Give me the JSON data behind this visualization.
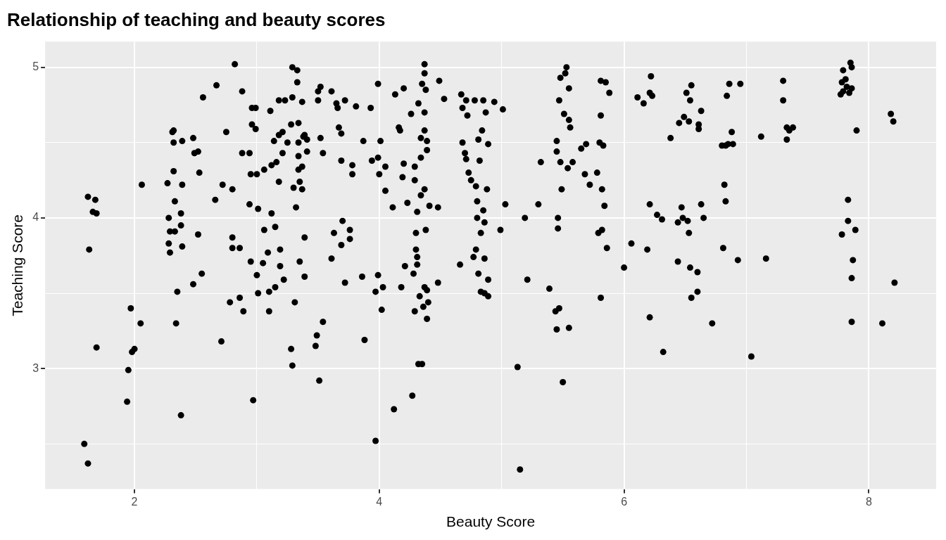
{
  "chart_data": {
    "type": "scatter",
    "title": "Relationship of teaching and beauty scores",
    "xlabel": "Beauty Score",
    "ylabel": "Teaching Score",
    "marker": "circle",
    "grid": true,
    "legend": false,
    "xlim": [
      1.27,
      8.55
    ],
    "ylim": [
      2.2,
      5.17
    ],
    "xticks": [
      2,
      {
        "value": 3,
        "label": null
      },
      4,
      {
        "value": 5,
        "label": null
      },
      6,
      {
        "value": 7,
        "label": null
      },
      8
    ],
    "yticks": [
      {
        "value": 2.5,
        "label": null
      },
      3,
      {
        "value": 3.5,
        "label": null
      },
      4,
      {
        "value": 4.5,
        "label": null
      },
      5
    ],
    "series": [
      {
        "color": "#000000",
        "x": [
          1.62,
          1.68,
          1.66,
          1.69,
          1.63,
          1.69,
          1.59,
          1.62,
          1.94,
          1.95,
          1.98,
          2.0,
          1.97,
          2.05,
          2.06,
          2.27,
          2.31,
          2.32,
          2.32,
          2.32,
          2.33,
          2.28,
          2.29,
          2.33,
          2.28,
          2.29,
          2.35,
          2.34,
          2.38,
          2.39,
          2.38,
          2.38,
          2.39,
          2.39,
          2.48,
          2.49,
          2.52,
          2.53,
          2.52,
          2.55,
          2.48,
          2.56,
          2.66,
          2.67,
          2.72,
          2.75,
          2.71,
          2.8,
          2.8,
          2.8,
          2.82,
          2.86,
          2.86,
          2.78,
          2.88,
          2.88,
          2.89,
          2.94,
          2.94,
          2.95,
          2.96,
          2.96,
          2.97,
          2.99,
          2.99,
          3.0,
          3.01,
          3.0,
          3.01,
          2.95,
          3.05,
          3.06,
          3.06,
          3.09,
          3.1,
          3.1,
          3.11,
          3.12,
          3.12,
          3.14,
          3.15,
          3.15,
          3.16,
          3.18,
          3.18,
          3.18,
          3.19,
          3.19,
          3.21,
          3.21,
          3.22,
          3.23,
          3.25,
          3.28,
          3.29,
          3.28,
          3.29,
          3.29,
          3.3,
          3.31,
          3.32,
          3.33,
          3.33,
          3.34,
          3.34,
          3.34,
          3.34,
          3.35,
          3.35,
          3.37,
          3.37,
          3.37,
          3.38,
          3.39,
          3.39,
          3.39,
          3.41,
          3.41,
          3.48,
          3.49,
          3.5,
          3.5,
          3.51,
          3.52,
          3.52,
          3.54,
          3.54,
          3.61,
          3.61,
          3.63,
          3.65,
          3.66,
          3.67,
          3.69,
          3.69,
          3.7,
          3.69,
          3.72,
          3.72,
          3.76,
          3.76,
          3.78,
          3.78,
          3.81,
          3.86,
          3.87,
          3.88,
          3.93,
          3.94,
          3.97,
          3.97,
          3.99,
          3.99,
          3.99,
          4.0,
          4.01,
          4.02,
          4.03,
          4.05,
          4.05,
          4.11,
          4.12,
          4.13,
          4.16,
          4.17,
          4.19,
          4.18,
          4.2,
          4.2,
          4.21,
          4.23,
          4.26,
          4.27,
          4.28,
          4.29,
          4.29,
          4.29,
          4.3,
          4.3,
          4.31,
          4.31,
          4.31,
          4.32,
          4.32,
          4.33,
          4.34,
          4.34,
          4.34,
          4.35,
          4.35,
          4.37,
          4.37,
          4.37,
          4.36,
          4.38,
          4.38,
          4.39,
          4.39,
          4.39,
          4.39,
          4.4,
          4.37,
          4.37,
          4.37,
          4.41,
          4.48,
          4.48,
          4.49,
          4.53,
          4.66,
          4.67,
          4.68,
          4.68,
          4.7,
          4.71,
          4.71,
          4.72,
          4.73,
          4.75,
          4.77,
          4.78,
          4.79,
          4.79,
          4.8,
          4.8,
          4.81,
          4.81,
          4.82,
          4.83,
          4.83,
          4.84,
          4.85,
          4.85,
          4.86,
          4.86,
          4.86,
          4.87,
          4.88,
          4.89,
          4.89,
          4.89,
          4.94,
          4.99,
          5.01,
          5.03,
          5.13,
          5.15,
          5.19,
          5.21,
          5.3,
          5.32,
          5.39,
          5.44,
          5.45,
          5.45,
          5.46,
          5.46,
          5.45,
          5.47,
          5.47,
          5.48,
          5.48,
          5.49,
          5.5,
          5.51,
          5.52,
          5.53,
          5.54,
          5.55,
          5.55,
          5.55,
          5.56,
          5.58,
          5.65,
          5.68,
          5.69,
          5.72,
          5.78,
          5.79,
          5.8,
          5.81,
          5.81,
          5.81,
          5.82,
          5.82,
          5.83,
          5.84,
          5.85,
          5.86,
          5.88,
          6.0,
          6.06,
          6.11,
          6.16,
          6.19,
          6.21,
          6.21,
          6.21,
          6.22,
          6.23,
          6.27,
          6.31,
          6.32,
          6.38,
          6.44,
          6.44,
          6.45,
          6.47,
          6.48,
          6.49,
          6.51,
          6.52,
          6.53,
          6.54,
          6.55,
          6.53,
          6.54,
          6.55,
          6.6,
          6.6,
          6.61,
          6.61,
          6.63,
          6.63,
          6.65,
          6.72,
          6.8,
          6.81,
          6.82,
          6.83,
          6.83,
          6.84,
          6.85,
          6.86,
          6.88,
          6.89,
          6.93,
          6.95,
          7.04,
          7.12,
          7.16,
          7.3,
          7.3,
          7.33,
          7.33,
          7.35,
          7.38,
          7.77,
          7.78,
          7.79,
          7.79,
          7.78,
          7.81,
          7.82,
          7.84,
          7.83,
          7.83,
          7.85,
          7.86,
          7.86,
          7.86,
          7.86,
          7.87,
          7.89,
          7.9,
          8.11,
          8.18,
          8.2,
          8.21
        ],
        "values": [
          4.14,
          4.12,
          4.04,
          4.03,
          3.79,
          3.14,
          2.5,
          2.37,
          2.78,
          2.99,
          3.11,
          3.13,
          3.4,
          3.3,
          4.22,
          4.23,
          4.57,
          4.58,
          4.5,
          4.31,
          4.11,
          4.0,
          3.91,
          3.91,
          3.83,
          3.77,
          3.51,
          3.3,
          2.69,
          4.22,
          4.03,
          3.95,
          3.81,
          4.51,
          4.53,
          4.43,
          4.44,
          4.3,
          3.89,
          3.63,
          3.56,
          4.8,
          4.12,
          4.88,
          4.22,
          4.57,
          3.18,
          4.19,
          3.87,
          3.8,
          5.02,
          3.8,
          3.47,
          3.44,
          4.84,
          4.43,
          3.38,
          4.43,
          4.09,
          4.29,
          4.62,
          4.73,
          2.79,
          4.59,
          4.73,
          4.29,
          4.06,
          3.62,
          3.5,
          3.71,
          3.7,
          4.32,
          3.92,
          3.77,
          3.51,
          3.38,
          4.71,
          4.03,
          4.35,
          4.51,
          3.94,
          3.54,
          4.37,
          4.78,
          4.24,
          4.55,
          3.79,
          3.68,
          4.57,
          4.43,
          3.59,
          4.78,
          4.5,
          4.62,
          4.8,
          3.13,
          3.02,
          5.0,
          4.2,
          3.44,
          4.07,
          4.98,
          4.9,
          4.5,
          4.41,
          4.63,
          4.32,
          4.24,
          3.71,
          4.77,
          4.34,
          4.19,
          4.54,
          4.55,
          3.87,
          3.61,
          4.52,
          4.44,
          3.15,
          3.22,
          4.78,
          4.84,
          2.92,
          4.53,
          4.87,
          3.31,
          4.43,
          3.73,
          4.84,
          3.9,
          4.76,
          4.73,
          4.6,
          4.56,
          4.38,
          3.98,
          3.82,
          4.78,
          3.57,
          3.92,
          3.86,
          4.29,
          4.35,
          4.74,
          3.61,
          4.51,
          3.19,
          4.73,
          4.38,
          3.51,
          2.52,
          4.89,
          3.62,
          4.4,
          4.29,
          4.51,
          3.39,
          3.54,
          4.18,
          4.34,
          4.07,
          2.73,
          4.82,
          4.6,
          4.58,
          4.27,
          3.54,
          4.36,
          4.86,
          3.68,
          4.1,
          4.69,
          2.82,
          3.63,
          3.38,
          4.25,
          4.34,
          3.9,
          3.79,
          3.74,
          3.69,
          4.04,
          4.76,
          3.03,
          3.48,
          4.53,
          4.15,
          4.4,
          3.03,
          4.89,
          4.19,
          3.54,
          4.58,
          3.41,
          3.92,
          4.85,
          4.51,
          4.45,
          3.33,
          3.52,
          3.44,
          5.02,
          4.96,
          4.7,
          4.08,
          3.57,
          4.07,
          4.91,
          4.79,
          3.69,
          4.82,
          4.73,
          4.5,
          4.43,
          4.78,
          4.39,
          4.68,
          4.3,
          4.25,
          3.74,
          4.78,
          3.79,
          4.21,
          4.11,
          4.0,
          3.63,
          4.52,
          4.38,
          3.9,
          3.51,
          4.58,
          4.78,
          4.05,
          3.97,
          3.5,
          3.73,
          4.7,
          4.19,
          3.48,
          4.49,
          3.59,
          4.77,
          3.92,
          4.72,
          4.09,
          3.01,
          2.33,
          4.0,
          3.59,
          4.09,
          4.37,
          3.53,
          3.38,
          4.51,
          4.44,
          4.0,
          3.93,
          3.26,
          3.4,
          4.78,
          4.93,
          4.37,
          4.19,
          2.91,
          4.69,
          4.96,
          5.0,
          4.33,
          4.65,
          4.86,
          3.27,
          4.6,
          4.37,
          4.46,
          4.29,
          4.49,
          4.22,
          4.3,
          3.9,
          4.5,
          4.91,
          3.47,
          4.68,
          4.19,
          3.92,
          4.48,
          4.08,
          4.9,
          3.8,
          4.83,
          3.67,
          3.83,
          4.8,
          4.76,
          3.79,
          4.09,
          4.83,
          3.34,
          4.94,
          4.81,
          4.02,
          3.99,
          3.11,
          4.53,
          3.71,
          3.97,
          4.63,
          4.07,
          4.0,
          4.67,
          4.83,
          3.98,
          4.64,
          4.78,
          4.88,
          3.9,
          3.67,
          3.47,
          3.51,
          3.64,
          4.62,
          4.59,
          4.71,
          4.09,
          4.0,
          3.3,
          4.48,
          3.8,
          4.22,
          4.11,
          4.48,
          4.81,
          4.49,
          4.89,
          4.57,
          4.49,
          3.72,
          4.89,
          3.08,
          4.54,
          3.73,
          4.78,
          4.91,
          4.6,
          4.52,
          4.58,
          4.6,
          4.82,
          4.9,
          4.98,
          4.84,
          3.89,
          4.92,
          4.87,
          4.83,
          3.98,
          4.12,
          5.03,
          5.0,
          4.86,
          3.6,
          3.31,
          3.72,
          3.92,
          4.58,
          3.3,
          4.69,
          4.64,
          3.57
        ]
      }
    ]
  }
}
